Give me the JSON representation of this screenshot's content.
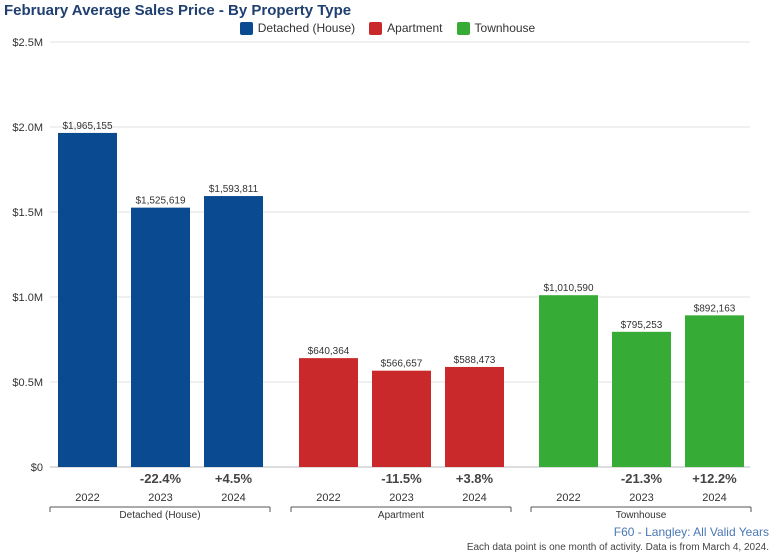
{
  "title": "February Average Sales Price - By Property Type",
  "legend": [
    {
      "label": "Detached (House)",
      "color": "#0a4a91"
    },
    {
      "label": "Apartment",
      "color": "#c9292a"
    },
    {
      "label": "Townhouse",
      "color": "#36ac37"
    }
  ],
  "footer": {
    "source": "F60 - Langley: All Valid Years",
    "note": "Each data point is one month of activity. Data is from March 4, 2024."
  },
  "chart_data": {
    "type": "bar",
    "title": "February Average Sales Price - By Property Type",
    "ylim": [
      0,
      2500000
    ],
    "y_ticks": [
      "$0",
      "$0.5M",
      "$1.0M",
      "$1.5M",
      "$2.0M",
      "$2.5M"
    ],
    "y_tick_values": [
      0,
      500000,
      1000000,
      1500000,
      2000000,
      2500000
    ],
    "grid": true,
    "legend_position": "top",
    "groups": [
      {
        "name": "Detached (House)",
        "color": "#0a4a91",
        "bars": [
          {
            "year": "2022",
            "value": 1965155,
            "label": "$1,965,155",
            "change": ""
          },
          {
            "year": "2023",
            "value": 1525619,
            "label": "$1,525,619",
            "change": "-22.4%"
          },
          {
            "year": "2024",
            "value": 1593811,
            "label": "$1,593,811",
            "change": "+4.5%"
          }
        ]
      },
      {
        "name": "Apartment",
        "color": "#c9292a",
        "bars": [
          {
            "year": "2022",
            "value": 640364,
            "label": "$640,364",
            "change": ""
          },
          {
            "year": "2023",
            "value": 566657,
            "label": "$566,657",
            "change": "-11.5%"
          },
          {
            "year": "2024",
            "value": 588473,
            "label": "$588,473",
            "change": "+3.8%"
          }
        ]
      },
      {
        "name": "Townhouse",
        "color": "#36ac37",
        "bars": [
          {
            "year": "2022",
            "value": 1010590,
            "label": "$1,010,590",
            "change": ""
          },
          {
            "year": "2023",
            "value": 795253,
            "label": "$795,253",
            "change": "-21.3%"
          },
          {
            "year": "2024",
            "value": 892163,
            "label": "$892,163",
            "change": "+12.2%"
          }
        ]
      }
    ]
  }
}
